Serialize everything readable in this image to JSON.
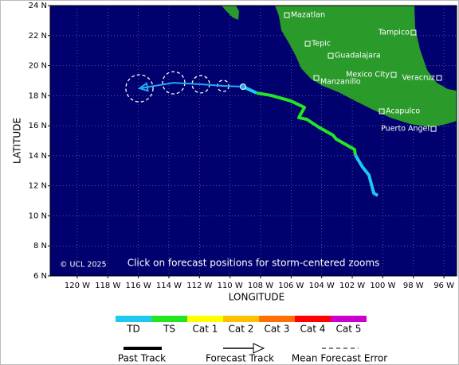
{
  "chart_data": {
    "type": "track",
    "x_label": "LONGITUDE",
    "y_label": "LATITUDE",
    "credit": "© UCL 2025",
    "note": "Click on forecast positions for storm-centered zooms",
    "xlim": [
      -121.77,
      -95.17
    ],
    "ylim": [
      6,
      24
    ],
    "xticks": [
      {
        "value": -120,
        "label": "120 W"
      },
      {
        "value": -118,
        "label": "118 W"
      },
      {
        "value": -116,
        "label": "116 W"
      },
      {
        "value": -114,
        "label": "114 W"
      },
      {
        "value": -112,
        "label": "112 W"
      },
      {
        "value": -110,
        "label": "110 W"
      },
      {
        "value": -108,
        "label": "108 W"
      },
      {
        "value": -106,
        "label": "106 W"
      },
      {
        "value": -104,
        "label": "104 W"
      },
      {
        "value": -102,
        "label": "102 W"
      },
      {
        "value": -100,
        "label": "100 W"
      },
      {
        "value": -98,
        "label": "98 W"
      },
      {
        "value": -96,
        "label": "96 W"
      }
    ],
    "yticks": [
      {
        "value": 6,
        "label": "6 N"
      },
      {
        "value": 8,
        "label": "8 N"
      },
      {
        "value": 10,
        "label": "10 N"
      },
      {
        "value": 12,
        "label": "12 N"
      },
      {
        "value": 14,
        "label": "14 N"
      },
      {
        "value": 16,
        "label": "16 N"
      },
      {
        "value": 18,
        "label": "18 N"
      },
      {
        "value": 20,
        "label": "20 N"
      },
      {
        "value": 22,
        "label": "22 N"
      },
      {
        "value": 24,
        "label": "24 N"
      }
    ],
    "grid": true,
    "intensity_scale": {
      "names": [
        "TD",
        "TS",
        "Cat 1",
        "Cat 2",
        "Cat 3",
        "Cat 4",
        "Cat 5"
      ],
      "colors": [
        "#1ec8f0",
        "#22e622",
        "#ffff00",
        "#ffc000",
        "#ff7000",
        "#ff0000",
        "#cc00cc"
      ]
    },
    "past_track": {
      "name": "Past Track",
      "segments": [
        {
          "color": "#1ec8f0",
          "lon": [
            -100.33,
            -100.59,
            -100.91,
            -101.33,
            -101.8
          ],
          "lat": [
            11.35,
            11.51,
            12.72,
            13.25,
            14.05
          ]
        },
        {
          "color": "#22e622",
          "lon": [
            -101.8,
            -101.85,
            -103.05,
            -103.26,
            -104.19,
            -104.98,
            -105.5,
            -105.13,
            -106.02,
            -107.32,
            -108.26
          ],
          "lat": [
            14.05,
            14.42,
            15.11,
            15.37,
            15.9,
            16.43,
            16.54,
            17.22,
            17.65,
            18.02,
            18.18
          ]
        },
        {
          "color": "#1ec8f0",
          "lon": [
            -108.26,
            -109.15
          ],
          "lat": [
            18.18,
            18.6
          ]
        }
      ]
    },
    "forecast": {
      "name": "Forecast Track",
      "color": "#22aaf0",
      "error_name": "Mean Forecast Error",
      "lon": [
        -109.15,
        -110.45,
        -111.91,
        -113.69,
        -115.93
      ],
      "lat": [
        18.6,
        18.65,
        18.76,
        18.86,
        18.49
      ],
      "error": [
        null,
        0.37,
        0.57,
        0.73,
        0.89
      ]
    },
    "cities": {
      "names": [
        "Mazatlan",
        "Tepic",
        "Guadalajara",
        "Tampico",
        "Mexico City",
        "Manzanillo",
        "Veracruz",
        "Acapulco",
        "Puerto Angel"
      ],
      "lon": [
        -106.28,
        -104.92,
        -103.41,
        -97.99,
        -99.29,
        -104.35,
        -96.32,
        -100.07,
        -96.68
      ],
      "lat": [
        23.36,
        21.46,
        20.66,
        22.2,
        19.39,
        19.18,
        19.18,
        16.96,
        15.79
      ]
    }
  }
}
